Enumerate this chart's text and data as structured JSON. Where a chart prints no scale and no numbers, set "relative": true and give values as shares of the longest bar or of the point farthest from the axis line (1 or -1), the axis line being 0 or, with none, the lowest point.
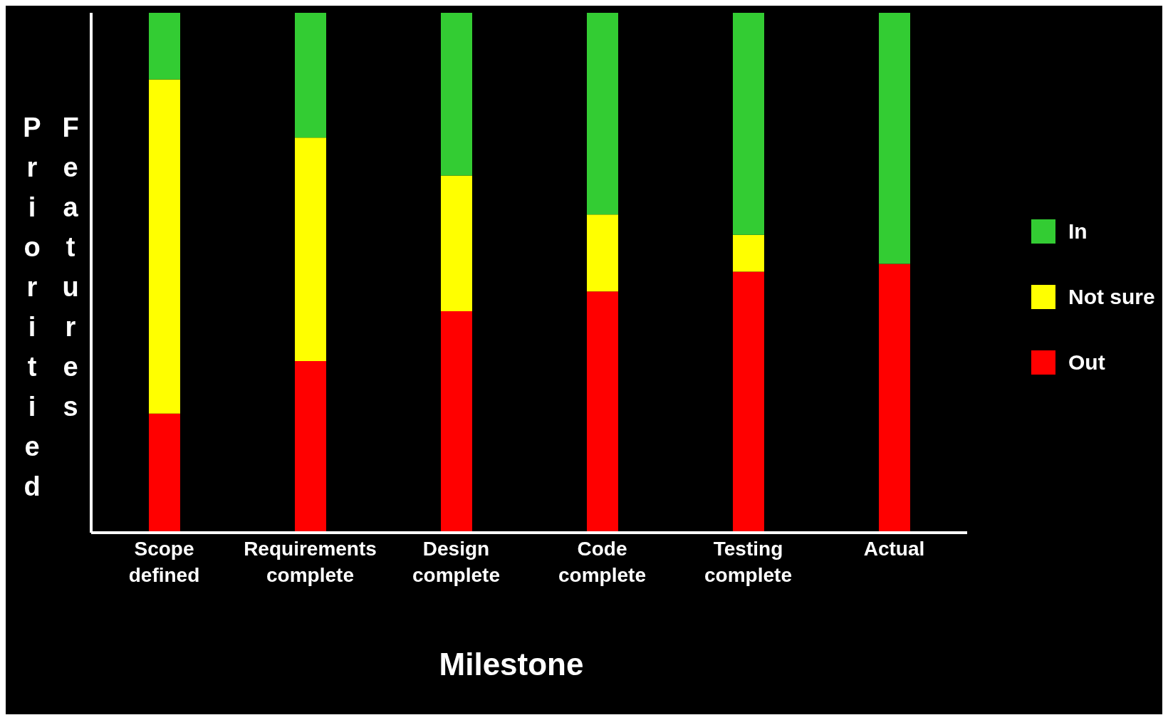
{
  "chart_data": {
    "type": "bar",
    "stacked": true,
    "relative": true,
    "xlabel": "Milestone",
    "ylabel": "Prioritied Features",
    "categories": [
      "Scope defined",
      "Requirements complete",
      "Design complete",
      "Code complete",
      "Testing complete",
      "Actual"
    ],
    "series": [
      {
        "name": "Out",
        "color": "#ff0000",
        "values": [
          0.229,
          0.33,
          0.426,
          0.464,
          0.502,
          0.517
        ]
      },
      {
        "name": "Not sure",
        "color": "#ffff00",
        "values": [
          0.643,
          0.43,
          0.261,
          0.148,
          0.071,
          0
        ]
      },
      {
        "name": "In",
        "color": "#33cc33",
        "values": [
          0.128,
          0.24,
          0.313,
          0.388,
          0.427,
          0.483
        ]
      }
    ],
    "legend": "right",
    "grid": false
  }
}
